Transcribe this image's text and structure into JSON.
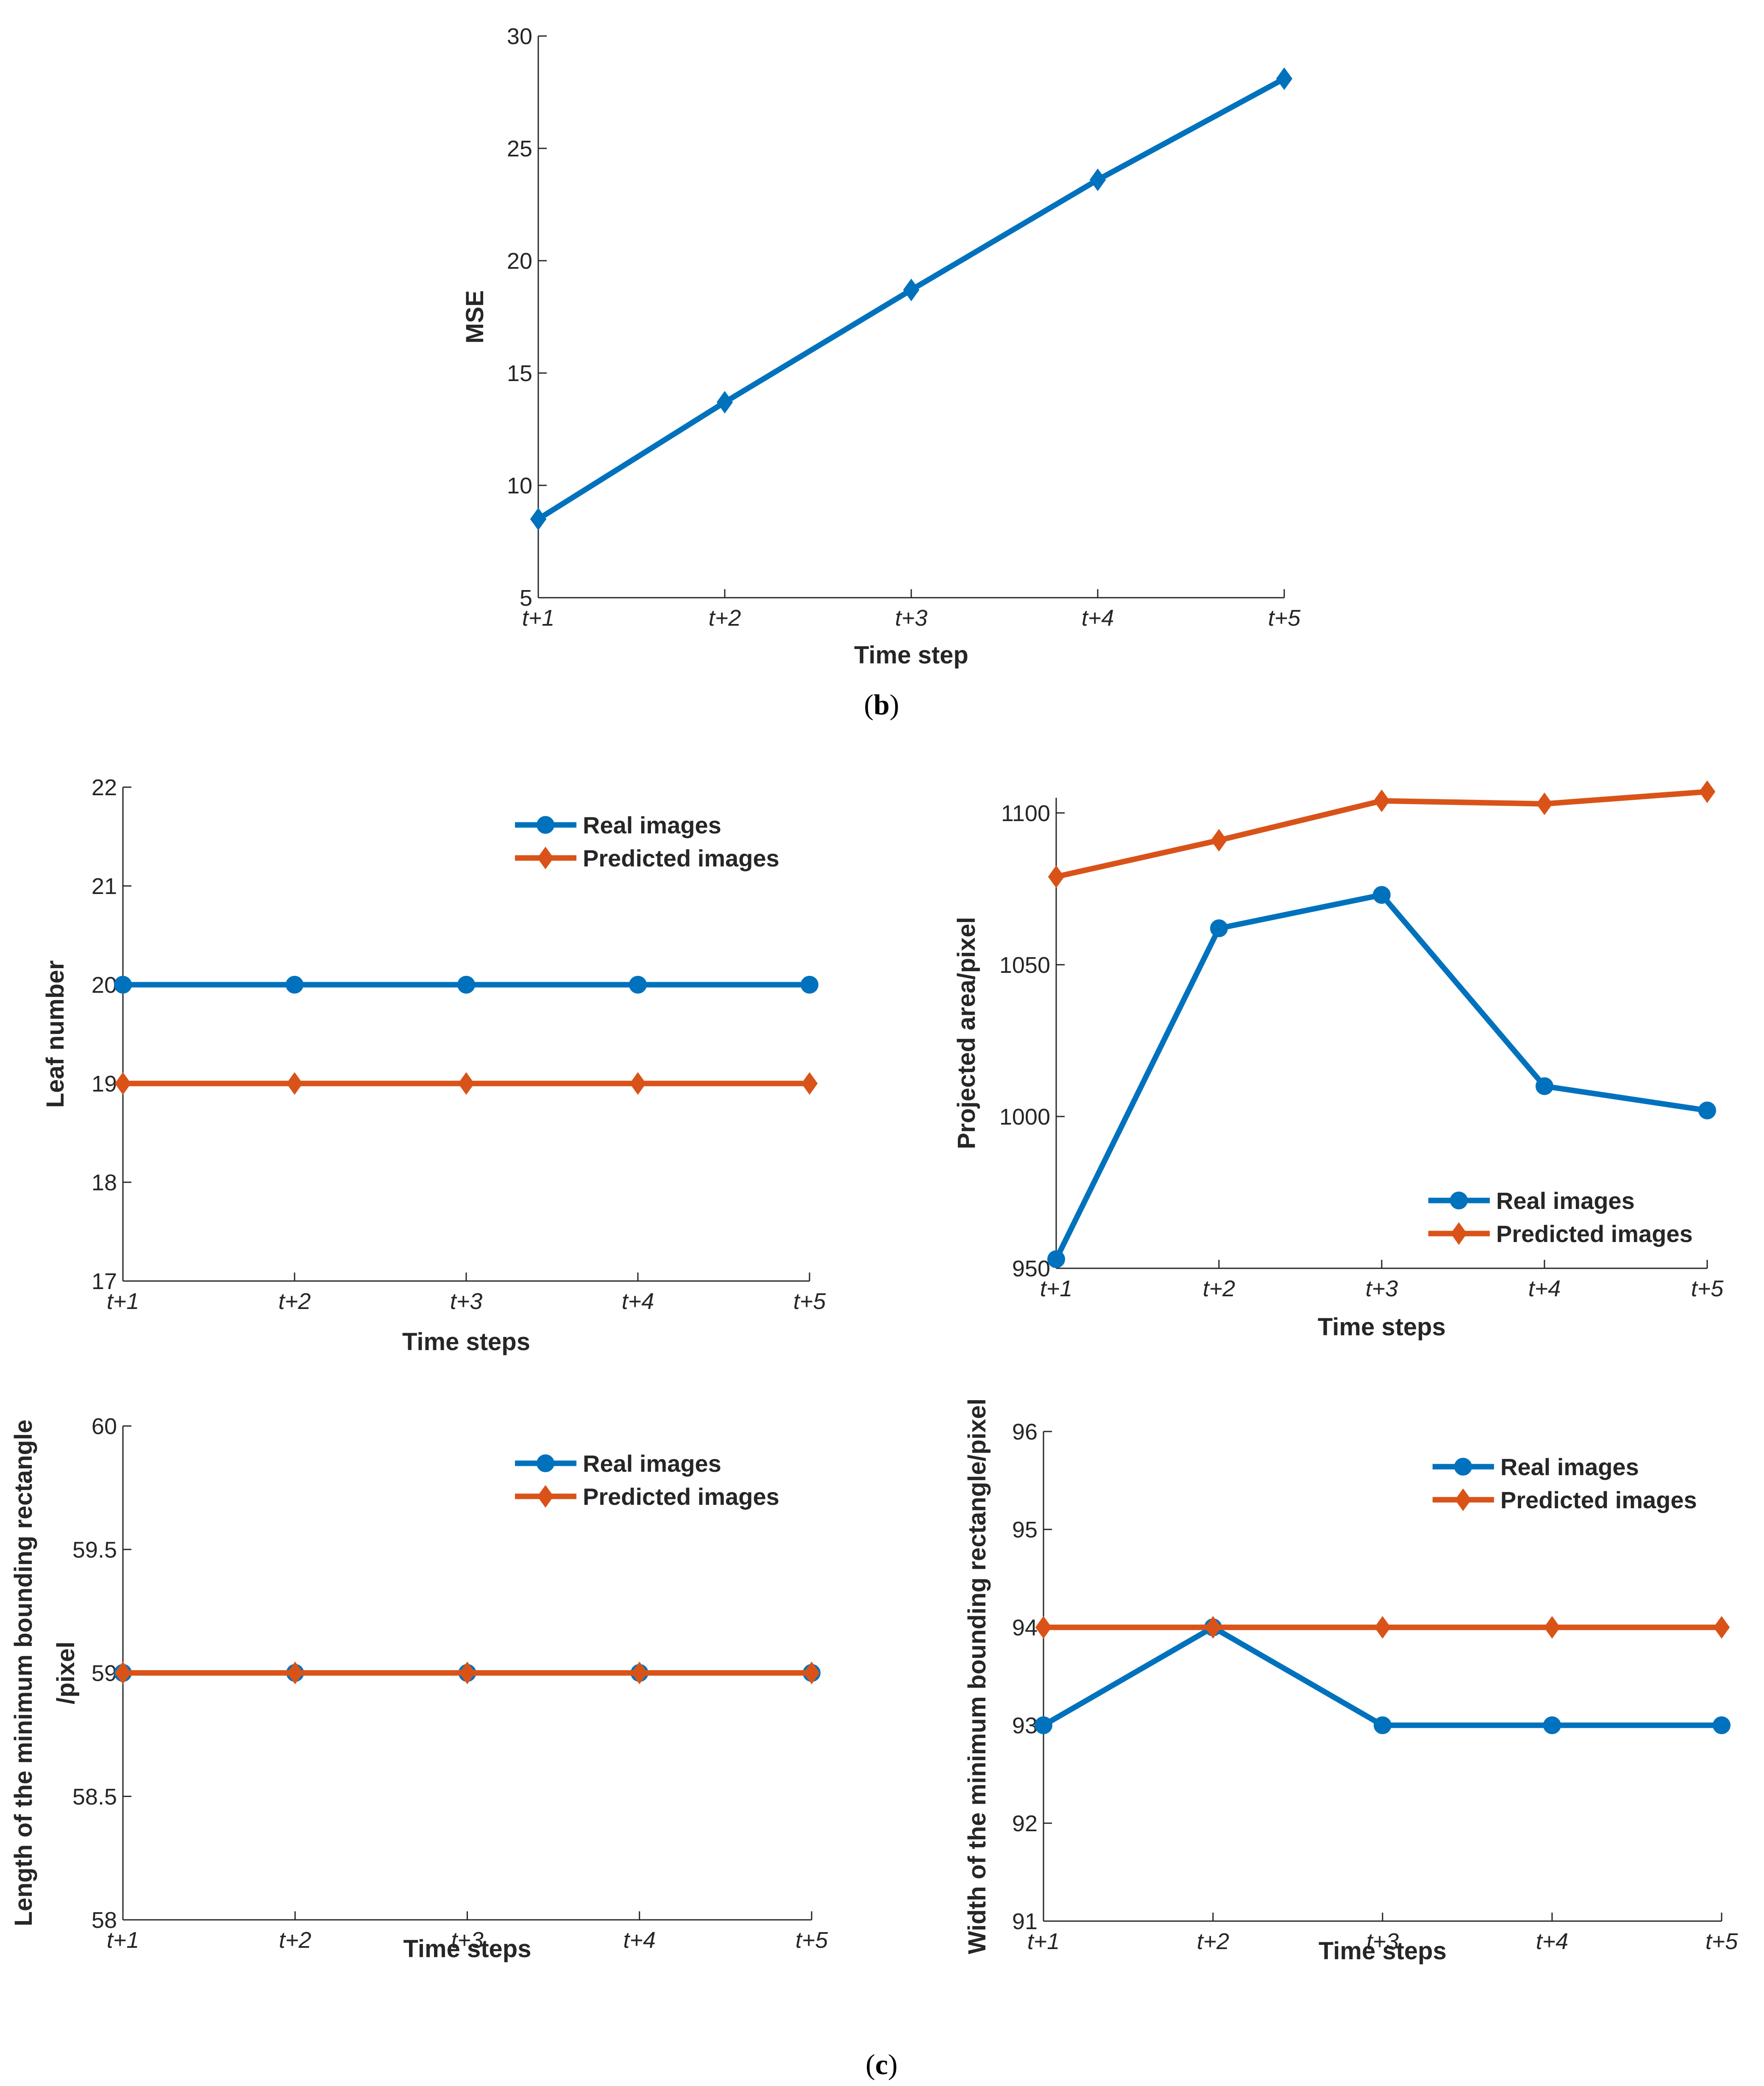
{
  "colors": {
    "real": "#0072BD",
    "predicted": "#D95319",
    "axis": "#262626"
  },
  "panel_labels": {
    "b": "b",
    "c": "c"
  },
  "chart_data": [
    {
      "id": "mse",
      "type": "line",
      "title": "",
      "xlabel": "Time step",
      "ylabel": "MSE",
      "categories": [
        "t+1",
        "t+2",
        "t+3",
        "t+4",
        "t+5"
      ],
      "ylim": [
        5,
        30
      ],
      "yticks": [
        5,
        10,
        15,
        20,
        25,
        30
      ],
      "grid": false,
      "legend": null,
      "series": [
        {
          "name": "MSE",
          "color": "#0072BD",
          "marker": "diamond",
          "values": [
            8.5,
            13.7,
            18.7,
            23.6,
            28.1
          ]
        }
      ]
    },
    {
      "id": "leaf",
      "type": "line",
      "title": "",
      "xlabel": "Time steps",
      "ylabel": "Leaf number",
      "categories": [
        "t+1",
        "t+2",
        "t+3",
        "t+4",
        "t+5"
      ],
      "ylim": [
        17,
        22
      ],
      "yticks": [
        17,
        18,
        19,
        20,
        21,
        22
      ],
      "grid": false,
      "legend": "top-right",
      "series": [
        {
          "name": "Real images",
          "color": "#0072BD",
          "marker": "circle",
          "values": [
            20,
            20,
            20,
            20,
            20
          ]
        },
        {
          "name": "Predicted images",
          "color": "#D95319",
          "marker": "diamond",
          "values": [
            19,
            19,
            19,
            19,
            19
          ]
        }
      ]
    },
    {
      "id": "area",
      "type": "line",
      "title": "",
      "xlabel": "Time steps",
      "ylabel": "Projected area/pixel",
      "categories": [
        "t+1",
        "t+2",
        "t+3",
        "t+4",
        "t+5"
      ],
      "ylim": [
        950,
        1105
      ],
      "yticks": [
        950,
        1000,
        1050,
        1100
      ],
      "grid": false,
      "legend": "bottom-right",
      "series": [
        {
          "name": "Real images",
          "color": "#0072BD",
          "marker": "circle",
          "values": [
            953,
            1062,
            1073,
            1010,
            1002
          ]
        },
        {
          "name": "Predicted images",
          "color": "#D95319",
          "marker": "diamond",
          "values": [
            1079,
            1091,
            1104,
            1103,
            1107
          ]
        }
      ]
    },
    {
      "id": "length",
      "type": "line",
      "title": "",
      "xlabel": "Time steps",
      "ylabel": [
        "Length of the minimum bounding rectangle",
        "/pixel"
      ],
      "categories": [
        "t+1",
        "t+2",
        "t+3",
        "t+4",
        "t+5"
      ],
      "ylim": [
        58,
        60
      ],
      "yticks": [
        58,
        58.5,
        59,
        59.5,
        60
      ],
      "grid": false,
      "legend": "top-right",
      "series": [
        {
          "name": "Real images",
          "color": "#0072BD",
          "marker": "circle",
          "values": [
            59,
            59,
            59,
            59,
            59
          ]
        },
        {
          "name": "Predicted images",
          "color": "#D95319",
          "marker": "diamond",
          "values": [
            59,
            59,
            59,
            59,
            59
          ]
        }
      ]
    },
    {
      "id": "width",
      "type": "line",
      "title": "",
      "xlabel": "Time steps",
      "ylabel": "Width of the minimum bounding rectangle/pixel",
      "categories": [
        "t+1",
        "t+2",
        "t+3",
        "t+4",
        "t+5"
      ],
      "ylim": [
        91,
        96
      ],
      "yticks": [
        91,
        92,
        93,
        94,
        95,
        96
      ],
      "grid": false,
      "legend": "top-right",
      "series": [
        {
          "name": "Real images",
          "color": "#0072BD",
          "marker": "circle",
          "values": [
            93,
            94,
            93,
            93,
            93
          ]
        },
        {
          "name": "Predicted images",
          "color": "#D95319",
          "marker": "diamond",
          "values": [
            94,
            94,
            94,
            94,
            94
          ]
        }
      ]
    }
  ]
}
